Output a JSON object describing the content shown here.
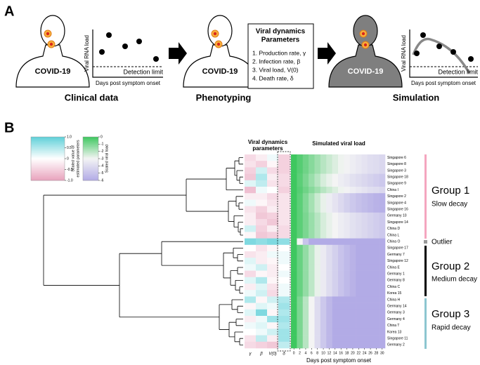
{
  "panel_a": {
    "label": "A",
    "person_label": "COVID-19",
    "plot_ylabel": "Viral RNA load",
    "plot_limit": "Detection limit",
    "plot_xlabel": "Days post symptom onset",
    "box_title": [
      "Viral dynamics",
      "Parameters"
    ],
    "box_items": [
      "1. Production rate, γ",
      "2. Infection rate, β",
      "3. Viral load, V(0)",
      "4. Death rate, δ"
    ],
    "captions": [
      "Clinical data",
      "Phenotyping",
      "Simulation"
    ]
  },
  "panel_b": {
    "label": "B",
    "param_colorbar": {
      "label": [
        "Scaled value of",
        "estimated parameters"
      ],
      "lim": [
        -1,
        1
      ],
      "ticks": [
        {
          "value": 1,
          "label": "1.0"
        },
        0.5,
        0,
        -0.5,
        {
          "value": -1,
          "label": "-1.0"
        }
      ],
      "colors": [
        "#e8a3bd",
        "#ffffff",
        "#5fd0d8"
      ]
    },
    "load_colorbar": {
      "label": "Scaled viral load",
      "lim": [
        -6,
        0
      ],
      "ticks": [
        0,
        -1,
        -2,
        -3,
        -4,
        -5,
        -6
      ],
      "colors": [
        "#b2abe6",
        "#f4f4f4",
        "#3ec75f"
      ]
    },
    "params_title": [
      "Viral dynamics",
      "parameters"
    ],
    "load_title": "Simulated viral load",
    "param_labels": [
      "γ",
      "β",
      "V(0)",
      "δ"
    ],
    "xlabel": "Days post symptom onset",
    "xlim": [
      -1,
      31
    ],
    "xticks": [
      0,
      2,
      4,
      6,
      8,
      10,
      12,
      14,
      16,
      18,
      20,
      22,
      24,
      26,
      28,
      30
    ],
    "rows": [
      {
        "name": "Singapore 6",
        "params": [
          -0.4,
          -0.2,
          0.1,
          -0.5
        ],
        "load": [
          0,
          -0.4,
          -0.8,
          -1.2,
          -1.6,
          -2,
          -2.3,
          -2.6,
          -2.9,
          -3.1,
          -3.3,
          -3.5,
          -3.7,
          -3.9,
          -4,
          -4.2
        ]
      },
      {
        "name": "Singapore 8",
        "params": [
          -0.3,
          -0.5,
          -0.1,
          -0.5
        ],
        "load": [
          0,
          -0.4,
          -0.8,
          -1.2,
          -1.6,
          -2,
          -2.3,
          -2.6,
          -2.9,
          -3.1,
          -3.3,
          -3.5,
          -3.7,
          -3.9,
          -4,
          -4.2
        ]
      },
      {
        "name": "Singapore 3",
        "params": [
          -0.5,
          0.3,
          -0.4,
          -0.5
        ],
        "load": [
          0,
          -0.4,
          -0.8,
          -1.2,
          -1.6,
          -2,
          -2.3,
          -2.6,
          -2.9,
          -3.1,
          -3.3,
          -3.5,
          -3.7,
          -3.9,
          -4,
          -4.2
        ]
      },
      {
        "name": "Singapore 18",
        "params": [
          -0.6,
          0.5,
          -0.2,
          -0.4
        ],
        "load": [
          0,
          -0.5,
          -1,
          -1.5,
          -2,
          -2.5,
          -2.8,
          -3,
          -3.3,
          -3.5,
          -3.8,
          -4,
          -4.2,
          -4.4,
          -4.6,
          -4.8
        ]
      },
      {
        "name": "Singapore 9",
        "params": [
          0.2,
          0.4,
          -0.3,
          -0.4
        ],
        "load": [
          0,
          -0.5,
          -1,
          -1.5,
          -2,
          -2.5,
          -2.8,
          -3,
          -3.3,
          -3.5,
          -3.8,
          -4,
          -4.2,
          -4.4,
          -4.6,
          -4.8
        ]
      },
      {
        "name": "China I",
        "params": [
          -0.7,
          0.1,
          0,
          -0.5
        ],
        "load": [
          0,
          -0.4,
          -0.8,
          -1.2,
          -1.6,
          -2,
          -2.3,
          -2.6,
          -2.9,
          -3.1,
          -3.3,
          -3.5,
          -3.7,
          -3.9,
          -4,
          -4.2
        ]
      },
      {
        "name": "Singapore 2",
        "params": [
          -0.2,
          -0.2,
          -0.4,
          -0.3
        ],
        "load": [
          0,
          -0.5,
          -1.1,
          -1.7,
          -2.3,
          -2.8,
          -3.3,
          -3.7,
          -4.1,
          -4.5,
          -4.8,
          -5.1,
          -5.3,
          -5.5,
          -5.7,
          -5.8
        ]
      },
      {
        "name": "Singapore 4",
        "params": [
          0.1,
          -0.1,
          -0.3,
          -0.3
        ],
        "load": [
          0,
          -0.5,
          -1.1,
          -1.7,
          -2.3,
          -2.8,
          -3.3,
          -3.7,
          -4.1,
          -4.5,
          -4.8,
          -5.1,
          -5.3,
          -5.5,
          -5.7,
          -5.8
        ]
      },
      {
        "name": "Singapore 16",
        "params": [
          -0.3,
          -0.5,
          -0.2,
          -0.3
        ],
        "load": [
          0,
          -0.5,
          -1.1,
          -1.7,
          -2.3,
          -2.8,
          -3.3,
          -3.7,
          -4.1,
          -4.5,
          -4.8,
          -5.1,
          -5.3,
          -5.5,
          -5.7,
          -5.8
        ]
      },
      {
        "name": "Germany 10",
        "params": [
          -0.2,
          -0.6,
          -0.5,
          -0.3
        ],
        "load": [
          0,
          -0.5,
          -1,
          -1.5,
          -2,
          -2.5,
          -2.8,
          -3,
          -3.3,
          -3.5,
          -3.8,
          -4,
          -4.2,
          -4.4,
          -4.6,
          -4.8
        ]
      },
      {
        "name": "Singapore 14",
        "params": [
          -0.2,
          -0.4,
          -0.6,
          -0.3
        ],
        "load": [
          0,
          -0.5,
          -1,
          -1.5,
          -2,
          -2.5,
          -2.8,
          -3,
          -3.3,
          -3.5,
          -3.8,
          -4,
          -4.2,
          -4.4,
          -4.6,
          -4.8
        ]
      },
      {
        "name": "China D",
        "params": [
          0.3,
          -0.5,
          -0.2,
          -0.4
        ],
        "load": [
          0,
          -0.5,
          -1,
          -1.5,
          -2,
          -2.5,
          -2.8,
          -3,
          -3.3,
          -3.5,
          -3.8,
          -4,
          -4.2,
          -4.4,
          -4.6,
          -4.8
        ]
      },
      {
        "name": "China L",
        "params": [
          -0.1,
          -0.6,
          -0.5,
          -0.4
        ],
        "load": [
          0,
          -0.5,
          -1,
          -1.5,
          -2,
          -2.5,
          -2.8,
          -3,
          -3.3,
          -3.5,
          -3.8,
          -4,
          -4.2,
          -4.4,
          -4.6,
          -4.8
        ]
      },
      {
        "name": "China O",
        "params": [
          0.8,
          0.7,
          0.8,
          0.7
        ],
        "load": [
          0,
          -3,
          -5,
          -6,
          -6,
          -6,
          -6,
          -6,
          -6,
          -6,
          -6,
          -6,
          -6,
          -6,
          -6,
          -6
        ]
      },
      {
        "name": "Singapore 17",
        "params": [
          0,
          -0.3,
          -0.1,
          0
        ],
        "load": [
          0,
          -0.7,
          -1.4,
          -2.1,
          -2.8,
          -3.4,
          -4,
          -4.5,
          -5,
          -5.4,
          -5.7,
          -6,
          -6,
          -6,
          -6,
          -6
        ]
      },
      {
        "name": "Germany 7",
        "params": [
          -0.3,
          -0.2,
          0.1,
          0.1
        ],
        "load": [
          0,
          -0.7,
          -1.4,
          -2.1,
          -2.8,
          -3.4,
          -4,
          -4.5,
          -5,
          -5.4,
          -5.7,
          -6,
          -6,
          -6,
          -6,
          -6
        ]
      },
      {
        "name": "Singapore 12",
        "params": [
          0.2,
          -0.2,
          -0.1,
          0.1
        ],
        "load": [
          0,
          -0.7,
          -1.4,
          -2.1,
          -2.8,
          -3.4,
          -4,
          -4.5,
          -5,
          -5.4,
          -5.7,
          -6,
          -6,
          -6,
          -6,
          -6
        ]
      },
      {
        "name": "China E",
        "params": [
          0.1,
          0.3,
          -0.2,
          0
        ],
        "load": [
          0,
          -0.7,
          -1.4,
          -2.1,
          -2.8,
          -3.4,
          -4,
          -4.5,
          -5,
          -5.4,
          -5.7,
          -6,
          -6,
          -6,
          -6,
          -6
        ]
      },
      {
        "name": "Germany 1",
        "params": [
          -0.4,
          -0.1,
          -0.2,
          0.1
        ],
        "load": [
          0,
          -0.7,
          -1.4,
          -2.1,
          -2.8,
          -3.4,
          -4,
          -4.5,
          -5,
          -5.4,
          -5.7,
          -6,
          -6,
          -6,
          -6,
          -6
        ]
      },
      {
        "name": "Germany 8",
        "params": [
          0.2,
          0.5,
          -0.1,
          0
        ],
        "load": [
          0,
          -0.7,
          -1.4,
          -2.1,
          -2.8,
          -3.4,
          -4,
          -4.5,
          -5,
          -5.4,
          -5.7,
          -6,
          -6,
          -6,
          -6,
          -6
        ]
      },
      {
        "name": "China C",
        "params": [
          -0.2,
          0.2,
          -0.3,
          0.1
        ],
        "load": [
          0,
          -0.7,
          -1.4,
          -2.1,
          -2.8,
          -3.4,
          -4,
          -4.5,
          -5,
          -5.4,
          -5.7,
          -6,
          -6,
          -6,
          -6,
          -6
        ]
      },
      {
        "name": "Korea 15",
        "params": [
          0.1,
          0.3,
          -0.4,
          0.1
        ],
        "load": [
          0,
          -0.7,
          -1.4,
          -2.1,
          -2.8,
          -3.4,
          -4,
          -4.5,
          -5,
          -5.4,
          -5.7,
          -6,
          -6,
          -6,
          -6,
          -6
        ]
      },
      {
        "name": "China H",
        "params": [
          0.5,
          -0.1,
          0.3,
          0.5
        ],
        "load": [
          0,
          -1,
          -2,
          -3,
          -4,
          -4.8,
          -5.5,
          -6,
          -6,
          -6,
          -6,
          -6,
          -6,
          -6,
          -6,
          -6
        ]
      },
      {
        "name": "Germany 14",
        "params": [
          -0.1,
          0.2,
          0.1,
          0.6
        ],
        "load": [
          0,
          -1,
          -2,
          -3,
          -4,
          -4.8,
          -5.5,
          -6,
          -6,
          -6,
          -6,
          -6,
          -6,
          -6,
          -6,
          -6
        ]
      },
      {
        "name": "Germany 3",
        "params": [
          0.2,
          0.8,
          -0.1,
          0.5
        ],
        "load": [
          0,
          -1,
          -2,
          -3,
          -4,
          -4.8,
          -5.5,
          -6,
          -6,
          -6,
          -6,
          -6,
          -6,
          -6,
          -6,
          -6
        ]
      },
      {
        "name": "Germany 4",
        "params": [
          -0.2,
          0.1,
          0.6,
          0.6
        ],
        "load": [
          0,
          -1,
          -2,
          -3,
          -4,
          -4.8,
          -5.5,
          -6,
          -6,
          -6,
          -6,
          -6,
          -6,
          -6,
          -6,
          -6
        ]
      },
      {
        "name": "China T",
        "params": [
          0.1,
          0.2,
          -0.1,
          0.5
        ],
        "load": [
          0,
          -1,
          -2,
          -3,
          -4,
          -4.8,
          -5.5,
          -6,
          -6,
          -6,
          -6,
          -6,
          -6,
          -6,
          -6,
          -6
        ]
      },
      {
        "name": "Korea 13",
        "params": [
          0,
          0.1,
          0.3,
          0.6
        ],
        "load": [
          0,
          -1,
          -2,
          -3,
          -4,
          -4.8,
          -5.5,
          -6,
          -6,
          -6,
          -6,
          -6,
          -6,
          -6,
          -6,
          -6
        ]
      },
      {
        "name": "Singapore 11",
        "params": [
          -0.3,
          0.4,
          -0.2,
          0.6
        ],
        "load": [
          0,
          -1,
          -2,
          -3,
          -4,
          -4.8,
          -5.5,
          -6,
          -6,
          -6,
          -6,
          -6,
          -6,
          -6,
          -6,
          -6
        ]
      },
      {
        "name": "Germany 2",
        "params": [
          -0.4,
          -0.5,
          -0.6,
          0.4
        ],
        "load": [
          0,
          -1,
          -2,
          -3,
          -4,
          -4.8,
          -5.5,
          -6,
          -6,
          -6,
          -6,
          -6,
          -6,
          -6,
          -6,
          -6
        ]
      }
    ],
    "groups": [
      {
        "name": "Group 1",
        "desc": "Slow decay"
      },
      {
        "name": "Group 2",
        "desc": "Medium decay"
      },
      {
        "name": "Group 3",
        "desc": "Rapid decay"
      }
    ],
    "outlier": "Outlier"
  }
}
